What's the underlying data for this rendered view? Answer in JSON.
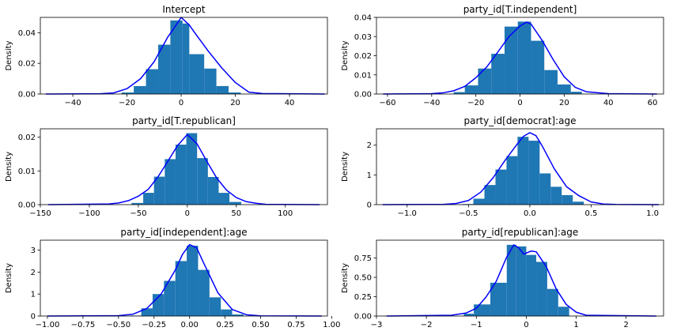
{
  "colors": {
    "bar": "#1f77b4",
    "kde": "#0000ff",
    "axis": "#000000",
    "background": "#ffffff"
  },
  "chart_data": [
    {
      "type": "bar",
      "title": "Intercept",
      "xlabel": "",
      "ylabel": "Density",
      "xlim": [
        -52,
        54
      ],
      "ylim": [
        0,
        0.05
      ],
      "xticks": [
        -40,
        -20,
        0,
        20,
        40
      ],
      "xtick_labels": [
        "−40",
        "−20",
        "0",
        "20",
        "40"
      ],
      "yticks": [
        0,
        0.02,
        0.04
      ],
      "ytick_labels": [
        "0.00",
        "0.02",
        "0.04"
      ],
      "bin_edges": [
        -22,
        -17.5,
        -13,
        -8.5,
        -4,
        0.5,
        3,
        8.5,
        13,
        17.5,
        22
      ],
      "bar_heights": [
        0.001,
        0.0052,
        0.0162,
        0.0322,
        0.048,
        0.046,
        0.026,
        0.0166,
        0.0052,
        0.001
      ],
      "kde_x": [
        -50,
        -30,
        -25,
        -20,
        -15,
        -10,
        -5,
        -3,
        0,
        3,
        5,
        10,
        15,
        20,
        25,
        30,
        53
      ],
      "kde_y": [
        0,
        0.0002,
        0.0007,
        0.0035,
        0.01,
        0.021,
        0.037,
        0.042,
        0.05,
        0.045,
        0.04,
        0.028,
        0.017,
        0.0075,
        0.0012,
        0.0003,
        0
      ]
    },
    {
      "type": "bar",
      "title": "party_id[T.independent]",
      "xlabel": "",
      "ylabel": "Density",
      "xlim": [
        -65,
        65
      ],
      "ylim": [
        0,
        0.04
      ],
      "xticks": [
        -60,
        -40,
        -20,
        0,
        20,
        40,
        60
      ],
      "xtick_labels": [
        "−60",
        "−40",
        "−20",
        "0",
        "20",
        "40",
        "60"
      ],
      "yticks": [
        0,
        0.01,
        0.02,
        0.03,
        0.04
      ],
      "ytick_labels": [
        "0.00",
        "0.01",
        "0.02",
        "0.03",
        "0.04"
      ],
      "bin_edges": [
        -30,
        -25,
        -19,
        -13,
        -7,
        -1,
        5,
        11,
        17,
        23,
        28
      ],
      "bar_heights": [
        0.001,
        0.0045,
        0.0133,
        0.021,
        0.0352,
        0.0378,
        0.0278,
        0.0125,
        0.005,
        0.0012
      ],
      "kde_x": [
        -62,
        -40,
        -35,
        -30,
        -25,
        -20,
        -15,
        -10,
        -5,
        0,
        3,
        5,
        10,
        15,
        20,
        25,
        30,
        40,
        62
      ],
      "kde_y": [
        0,
        0.0002,
        0.0006,
        0.0017,
        0.004,
        0.0085,
        0.0142,
        0.022,
        0.03,
        0.0355,
        0.0375,
        0.0365,
        0.028,
        0.018,
        0.009,
        0.0035,
        0.0012,
        0.0002,
        0
      ]
    },
    {
      "type": "bar",
      "title": "party_id[T.republican]",
      "xlabel": "",
      "ylabel": "Density",
      "xlim": [
        -150,
        143
      ],
      "ylim": [
        0,
        0.0225
      ],
      "xticks": [
        -150,
        -100,
        -50,
        0,
        50,
        100
      ],
      "xtick_labels": [
        "−150",
        "−100",
        "−50",
        "0",
        "50",
        "100"
      ],
      "yticks": [
        0,
        0.01,
        0.02
      ],
      "ytick_labels": [
        "0.00",
        "0.01",
        "0.02"
      ],
      "bin_edges": [
        -57,
        -45,
        -34,
        -23,
        -12,
        -1,
        10,
        21,
        32,
        43,
        55
      ],
      "bar_heights": [
        0.0005,
        0.0035,
        0.0083,
        0.0135,
        0.0178,
        0.0212,
        0.0138,
        0.0082,
        0.0035,
        0.0008
      ],
      "kde_x": [
        -142,
        -80,
        -70,
        -60,
        -50,
        -40,
        -30,
        -20,
        -10,
        0,
        10,
        20,
        30,
        40,
        50,
        60,
        70,
        80,
        135
      ],
      "kde_y": [
        0,
        0.0002,
        0.0005,
        0.0012,
        0.0025,
        0.0045,
        0.0082,
        0.0128,
        0.0175,
        0.0208,
        0.018,
        0.0128,
        0.0079,
        0.0043,
        0.0021,
        0.0009,
        0.0004,
        0.0001,
        0
      ]
    },
    {
      "type": "bar",
      "title": "party_id[democrat]:age",
      "xlabel": "",
      "ylabel": "Density",
      "xlim": [
        -1.25,
        1.09
      ],
      "ylim": [
        0,
        2.55
      ],
      "xticks": [
        -1.0,
        -0.5,
        0.0,
        0.5,
        1.0
      ],
      "xtick_labels": [
        "−1.0",
        "−0.5",
        "0.0",
        "0.5",
        "1.0"
      ],
      "yticks": [
        0,
        1,
        2
      ],
      "ytick_labels": [
        "0",
        "1",
        "2"
      ],
      "bin_edges": [
        -0.55,
        -0.46,
        -0.37,
        -0.28,
        -0.19,
        -0.1,
        -0.01,
        0.08,
        0.17,
        0.26,
        0.35,
        0.44
      ],
      "bar_heights": [
        0.02,
        0.2,
        0.66,
        1.18,
        1.63,
        2.28,
        2.15,
        1.05,
        0.6,
        0.32,
        0.1
      ],
      "kde_x": [
        -1.2,
        -0.7,
        -0.6,
        -0.5,
        -0.4,
        -0.3,
        -0.2,
        -0.1,
        -0.05,
        0,
        0.05,
        0.1,
        0.2,
        0.3,
        0.4,
        0.5,
        0.6,
        0.7,
        1.05
      ],
      "kde_y": [
        0,
        0.01,
        0.04,
        0.14,
        0.42,
        0.9,
        1.5,
        2.05,
        2.3,
        2.42,
        2.32,
        1.98,
        1.2,
        0.6,
        0.3,
        0.09,
        0.02,
        0.005,
        0
      ]
    },
    {
      "type": "bar",
      "title": "party_id[independent]:age",
      "xlabel": "",
      "ylabel": "Density",
      "xlim": [
        -1.05,
        0.97
      ],
      "ylim": [
        0,
        3.45
      ],
      "xticks": [
        -1.0,
        -0.75,
        -0.5,
        -0.25,
        0.0,
        0.25,
        0.5,
        0.75,
        1.0
      ],
      "xtick_labels": [
        "−1.00",
        "−0.75",
        "−0.50",
        "−0.25",
        "0.00",
        "0.25",
        "0.50",
        "0.75",
        "1.00"
      ],
      "yticks": [
        0,
        1,
        2,
        3
      ],
      "ytick_labels": [
        "0",
        "1",
        "2",
        "3"
      ],
      "bin_edges": [
        -0.42,
        -0.34,
        -0.26,
        -0.18,
        -0.1,
        -0.02,
        0.06,
        0.14,
        0.22,
        0.3,
        0.38
      ],
      "bar_heights": [
        0.02,
        0.35,
        1.0,
        1.6,
        2.5,
        3.2,
        2.1,
        0.85,
        0.3,
        0.07
      ],
      "kde_x": [
        -1.0,
        -0.5,
        -0.4,
        -0.3,
        -0.2,
        -0.1,
        -0.05,
        0,
        0.05,
        0.1,
        0.2,
        0.3,
        0.4,
        0.5,
        0.93
      ],
      "kde_y": [
        0,
        0.02,
        0.08,
        0.35,
        1.0,
        2.1,
        2.8,
        3.25,
        3.1,
        2.4,
        1.05,
        0.3,
        0.06,
        0.01,
        0
      ]
    },
    {
      "type": "bar",
      "title": "party_id[republican]:age",
      "xlabel": "",
      "ylabel": "Density",
      "xlim": [
        -3.0,
        2.75
      ],
      "ylim": [
        0,
        0.98
      ],
      "xticks": [
        -3,
        -2,
        -1,
        0,
        1,
        2
      ],
      "xtick_labels": [
        "−3",
        "−2",
        "−1",
        "0",
        "1",
        "2"
      ],
      "yticks": [
        0,
        0.25,
        0.5,
        0.75
      ],
      "ytick_labels": [
        "0.00",
        "0.25",
        "0.50",
        "0.75"
      ],
      "bin_edges": [
        -1.25,
        -1.05,
        -0.72,
        -0.39,
        -0.2,
        0.0,
        0.2,
        0.42,
        0.64,
        0.86
      ],
      "bar_heights": [
        0.03,
        0.15,
        0.43,
        0.92,
        0.9,
        0.79,
        0.7,
        0.35,
        0.12
      ],
      "kde_x": [
        -2.8,
        -1.5,
        -1.2,
        -1.0,
        -0.8,
        -0.6,
        -0.4,
        -0.25,
        -0.15,
        -0.05,
        0.1,
        0.2,
        0.4,
        0.6,
        0.8,
        1.0,
        1.2,
        2.6
      ],
      "kde_y": [
        0,
        0.01,
        0.04,
        0.1,
        0.25,
        0.45,
        0.75,
        0.92,
        0.88,
        0.8,
        0.84,
        0.83,
        0.64,
        0.35,
        0.15,
        0.05,
        0.01,
        0
      ]
    }
  ]
}
